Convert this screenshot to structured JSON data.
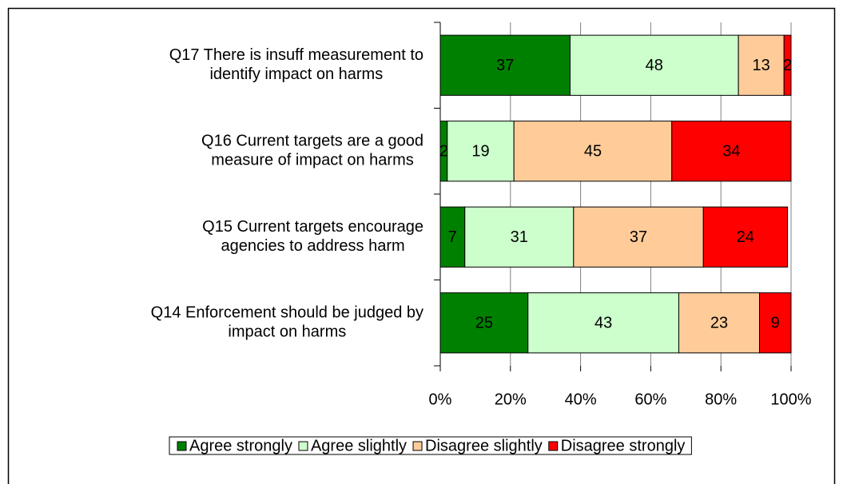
{
  "chart_data": {
    "type": "stacked_barh",
    "categories": [
      "Q17  There is insuff measurement to\nidentify impact on harms",
      "Q16  Current targets are a good\nmeasure of impact on harms",
      "Q15  Current targets encourage\nagencies to address harm",
      "Q14  Enforcement should be judged by\nimpact on harms"
    ],
    "series": [
      {
        "name": "Agree strongly",
        "color": "#008000",
        "values": [
          37,
          2,
          7,
          25
        ]
      },
      {
        "name": "Agree slightly",
        "color": "#ccffcc",
        "values": [
          48,
          19,
          31,
          43
        ]
      },
      {
        "name": "Disagree slightly",
        "color": "#ffcc99",
        "values": [
          13,
          45,
          37,
          23
        ]
      },
      {
        "name": "Disagree strongly",
        "color": "#ff0000",
        "values": [
          2,
          34,
          24,
          9
        ]
      }
    ],
    "xlim": [
      0,
      100
    ],
    "xticks": [
      {
        "value": 0,
        "label": "0%"
      },
      {
        "value": 20,
        "label": "20%"
      },
      {
        "value": 40,
        "label": "40%"
      },
      {
        "value": 60,
        "label": "60%"
      },
      {
        "value": 80,
        "label": "80%"
      },
      {
        "value": 100,
        "label": "100%"
      }
    ],
    "grid": true,
    "legend": "bottom"
  }
}
